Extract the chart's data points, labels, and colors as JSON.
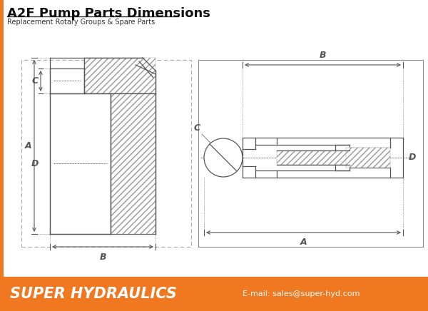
{
  "title": "A2F Pump Parts Dimensions",
  "subtitle": "Replacement Rotary Groups & Spare Parts",
  "footer_text": "SUPER HYDRAULICS",
  "footer_email": "E-mail: sales@super-hyd.com",
  "footer_bg": "#F07820",
  "title_color": "#111111",
  "bg_color": "#ffffff",
  "line_color": "#555555",
  "dim_line_color": "#444444",
  "orange_border": "#F07820"
}
